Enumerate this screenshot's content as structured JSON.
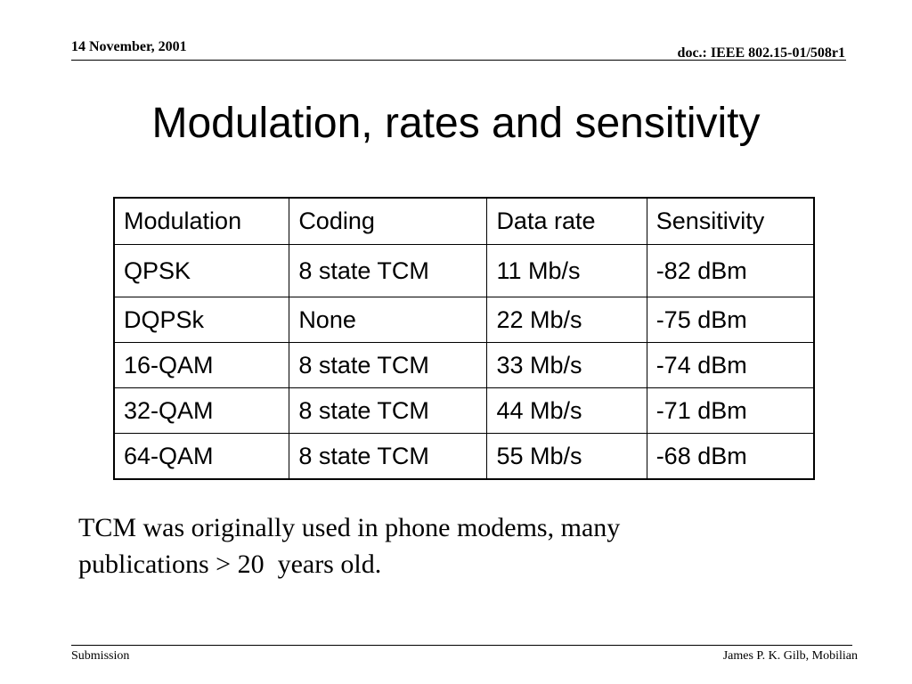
{
  "header": {
    "date": "14 November, 2001",
    "doc_id": "doc.: IEEE 802.15-01/508r1"
  },
  "title": "Modulation, rates and sensitivity",
  "table": {
    "columns": [
      "Modulation",
      "Coding",
      "Data rate",
      "Sensitivity"
    ],
    "rows": [
      [
        "QPSK",
        "8 state TCM",
        "11 Mb/s",
        "-82 dBm"
      ],
      [
        "DQPSk",
        "None",
        "22 Mb/s",
        "-75 dBm"
      ],
      [
        "16-QAM",
        "8 state TCM",
        "33 Mb/s",
        "-74 dBm"
      ],
      [
        "32-QAM",
        "8 state TCM",
        "44 Mb/s",
        "-71 dBm"
      ],
      [
        "64-QAM",
        "8 state TCM",
        "55 Mb/s",
        "-68 dBm"
      ]
    ]
  },
  "note": {
    "line1": "TCM was originally used in phone modems, many",
    "line2": "publications > 20  years old."
  },
  "footer": {
    "left": "Submission",
    "right": "James P. K. Gilb, Mobilian"
  }
}
